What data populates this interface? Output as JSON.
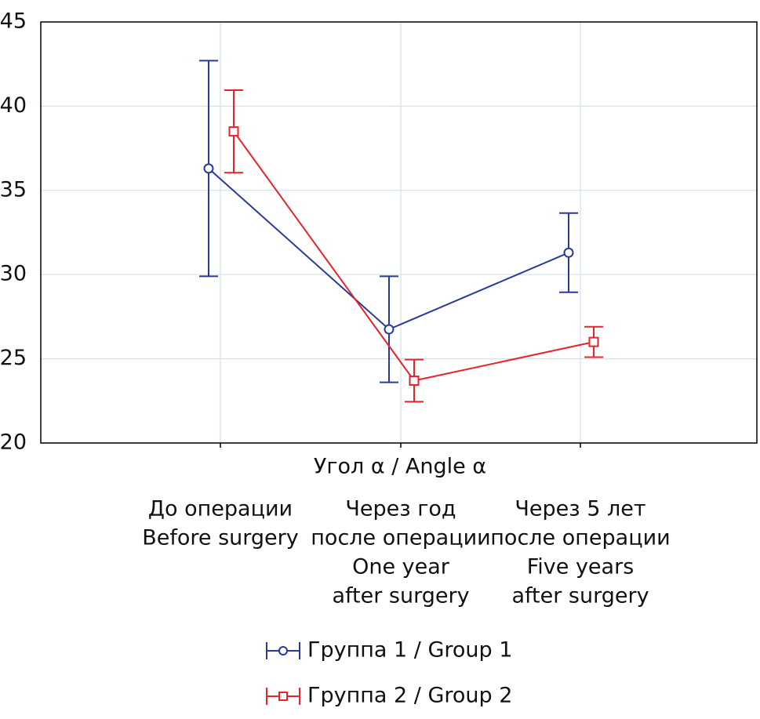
{
  "chart_data": {
    "type": "line",
    "x_label": "Угол α / Angle α",
    "categories": [
      [
        "До операции",
        "Before surgery"
      ],
      [
        "Через год",
        "после операции",
        "One year",
        "after surgery"
      ],
      [
        "Через 5 лет",
        "после операции",
        "Five years",
        "after surgery"
      ]
    ],
    "series": [
      {
        "name": "Группа 1 / Group 1",
        "color": "#2b3a9a",
        "marker": "circle",
        "values": [
          36.3,
          26.75,
          31.3
        ],
        "errors": [
          6.4,
          3.15,
          2.35
        ]
      },
      {
        "name": "Группа 2 / Group 2",
        "color": "#e8232b",
        "marker": "square",
        "values": [
          38.5,
          23.7,
          26.0
        ],
        "errors": [
          2.45,
          1.25,
          0.9
        ]
      }
    ],
    "ylim": [
      20,
      45
    ],
    "yticks": [
      20,
      25,
      30,
      35,
      40,
      45
    ],
    "grid": true
  }
}
